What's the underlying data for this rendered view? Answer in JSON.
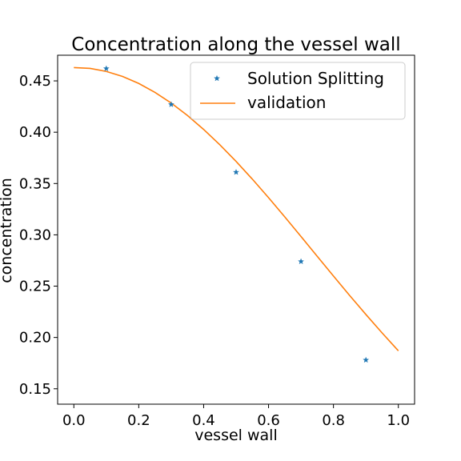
{
  "chart_data": {
    "type": "line",
    "title": "Concentration along the vessel wall",
    "xlabel": "vessel wall",
    "ylabel": "concentration",
    "xlim": [
      -0.05,
      1.05
    ],
    "ylim": [
      0.135,
      0.475
    ],
    "xticks": [
      0.0,
      0.2,
      0.4,
      0.6,
      0.8,
      1.0
    ],
    "xtick_labels": [
      "0.0",
      "0.2",
      "0.4",
      "0.6",
      "0.8",
      "1.0"
    ],
    "yticks": [
      0.15,
      0.2,
      0.25,
      0.3,
      0.35,
      0.4,
      0.45
    ],
    "ytick_labels": [
      "0.15",
      "0.20",
      "0.25",
      "0.30",
      "0.35",
      "0.40",
      "0.45"
    ],
    "grid": false,
    "legend_position": "top-right",
    "series": [
      {
        "name": "Solution Splitting",
        "kind": "scatter",
        "marker": "star",
        "color": "#1f77b4",
        "x": [
          0.1,
          0.3,
          0.5,
          0.7,
          0.9
        ],
        "y": [
          0.462,
          0.427,
          0.361,
          0.274,
          0.178
        ]
      },
      {
        "name": "validation",
        "kind": "line",
        "color": "#ff7f0e",
        "x": [
          0.0,
          0.05,
          0.1,
          0.15,
          0.2,
          0.25,
          0.3,
          0.35,
          0.4,
          0.45,
          0.5,
          0.55,
          0.6,
          0.65,
          0.7,
          0.75,
          0.8,
          0.85,
          0.9,
          0.95,
          1.0
        ],
        "y": [
          0.463,
          0.4622,
          0.4592,
          0.4543,
          0.4475,
          0.4388,
          0.4284,
          0.4163,
          0.4027,
          0.3877,
          0.3715,
          0.3543,
          0.3362,
          0.3175,
          0.2984,
          0.2791,
          0.2599,
          0.2409,
          0.2224,
          0.2044,
          0.187
        ]
      }
    ]
  }
}
